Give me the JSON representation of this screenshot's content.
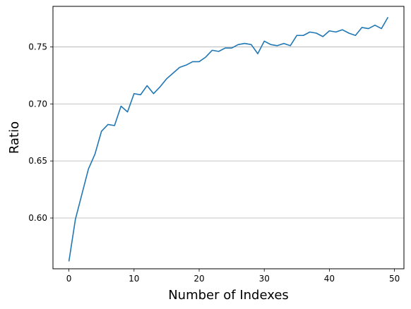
{
  "chart_data": {
    "type": "line",
    "title": "",
    "xlabel": "Number of Indexes",
    "ylabel": "Ratio",
    "xlim": [
      -2.45,
      51.45
    ],
    "ylim": [
      0.5555,
      0.7855
    ],
    "xticks": [
      0,
      10,
      20,
      30,
      40,
      50
    ],
    "xtick_labels": [
      "0",
      "10",
      "20",
      "30",
      "40",
      "50"
    ],
    "yticks": [
      0.6,
      0.65,
      0.7,
      0.75
    ],
    "ytick_labels": [
      "0.60",
      "0.65",
      "0.70",
      "0.75"
    ],
    "grid": {
      "x": false,
      "y": true
    },
    "legend": "none",
    "series": [
      {
        "color": "#1f77b4",
        "x": [
          0,
          1,
          2,
          3,
          4,
          5,
          6,
          7,
          8,
          9,
          10,
          11,
          12,
          13,
          14,
          15,
          16,
          17,
          18,
          19,
          20,
          21,
          22,
          23,
          24,
          25,
          26,
          27,
          28,
          29,
          30,
          31,
          32,
          33,
          34,
          35,
          36,
          37,
          38,
          39,
          40,
          41,
          42,
          43,
          44,
          45,
          46,
          47,
          48,
          49
        ],
        "y": [
          0.562,
          0.599,
          0.621,
          0.643,
          0.656,
          0.676,
          0.682,
          0.681,
          0.698,
          0.693,
          0.709,
          0.708,
          0.716,
          0.709,
          0.715,
          0.722,
          0.727,
          0.732,
          0.734,
          0.737,
          0.737,
          0.741,
          0.747,
          0.746,
          0.749,
          0.749,
          0.752,
          0.753,
          0.752,
          0.744,
          0.755,
          0.752,
          0.751,
          0.753,
          0.751,
          0.76,
          0.76,
          0.763,
          0.762,
          0.759,
          0.764,
          0.763,
          0.765,
          0.762,
          0.76,
          0.767,
          0.766,
          0.769,
          0.766,
          0.776
        ]
      }
    ]
  }
}
